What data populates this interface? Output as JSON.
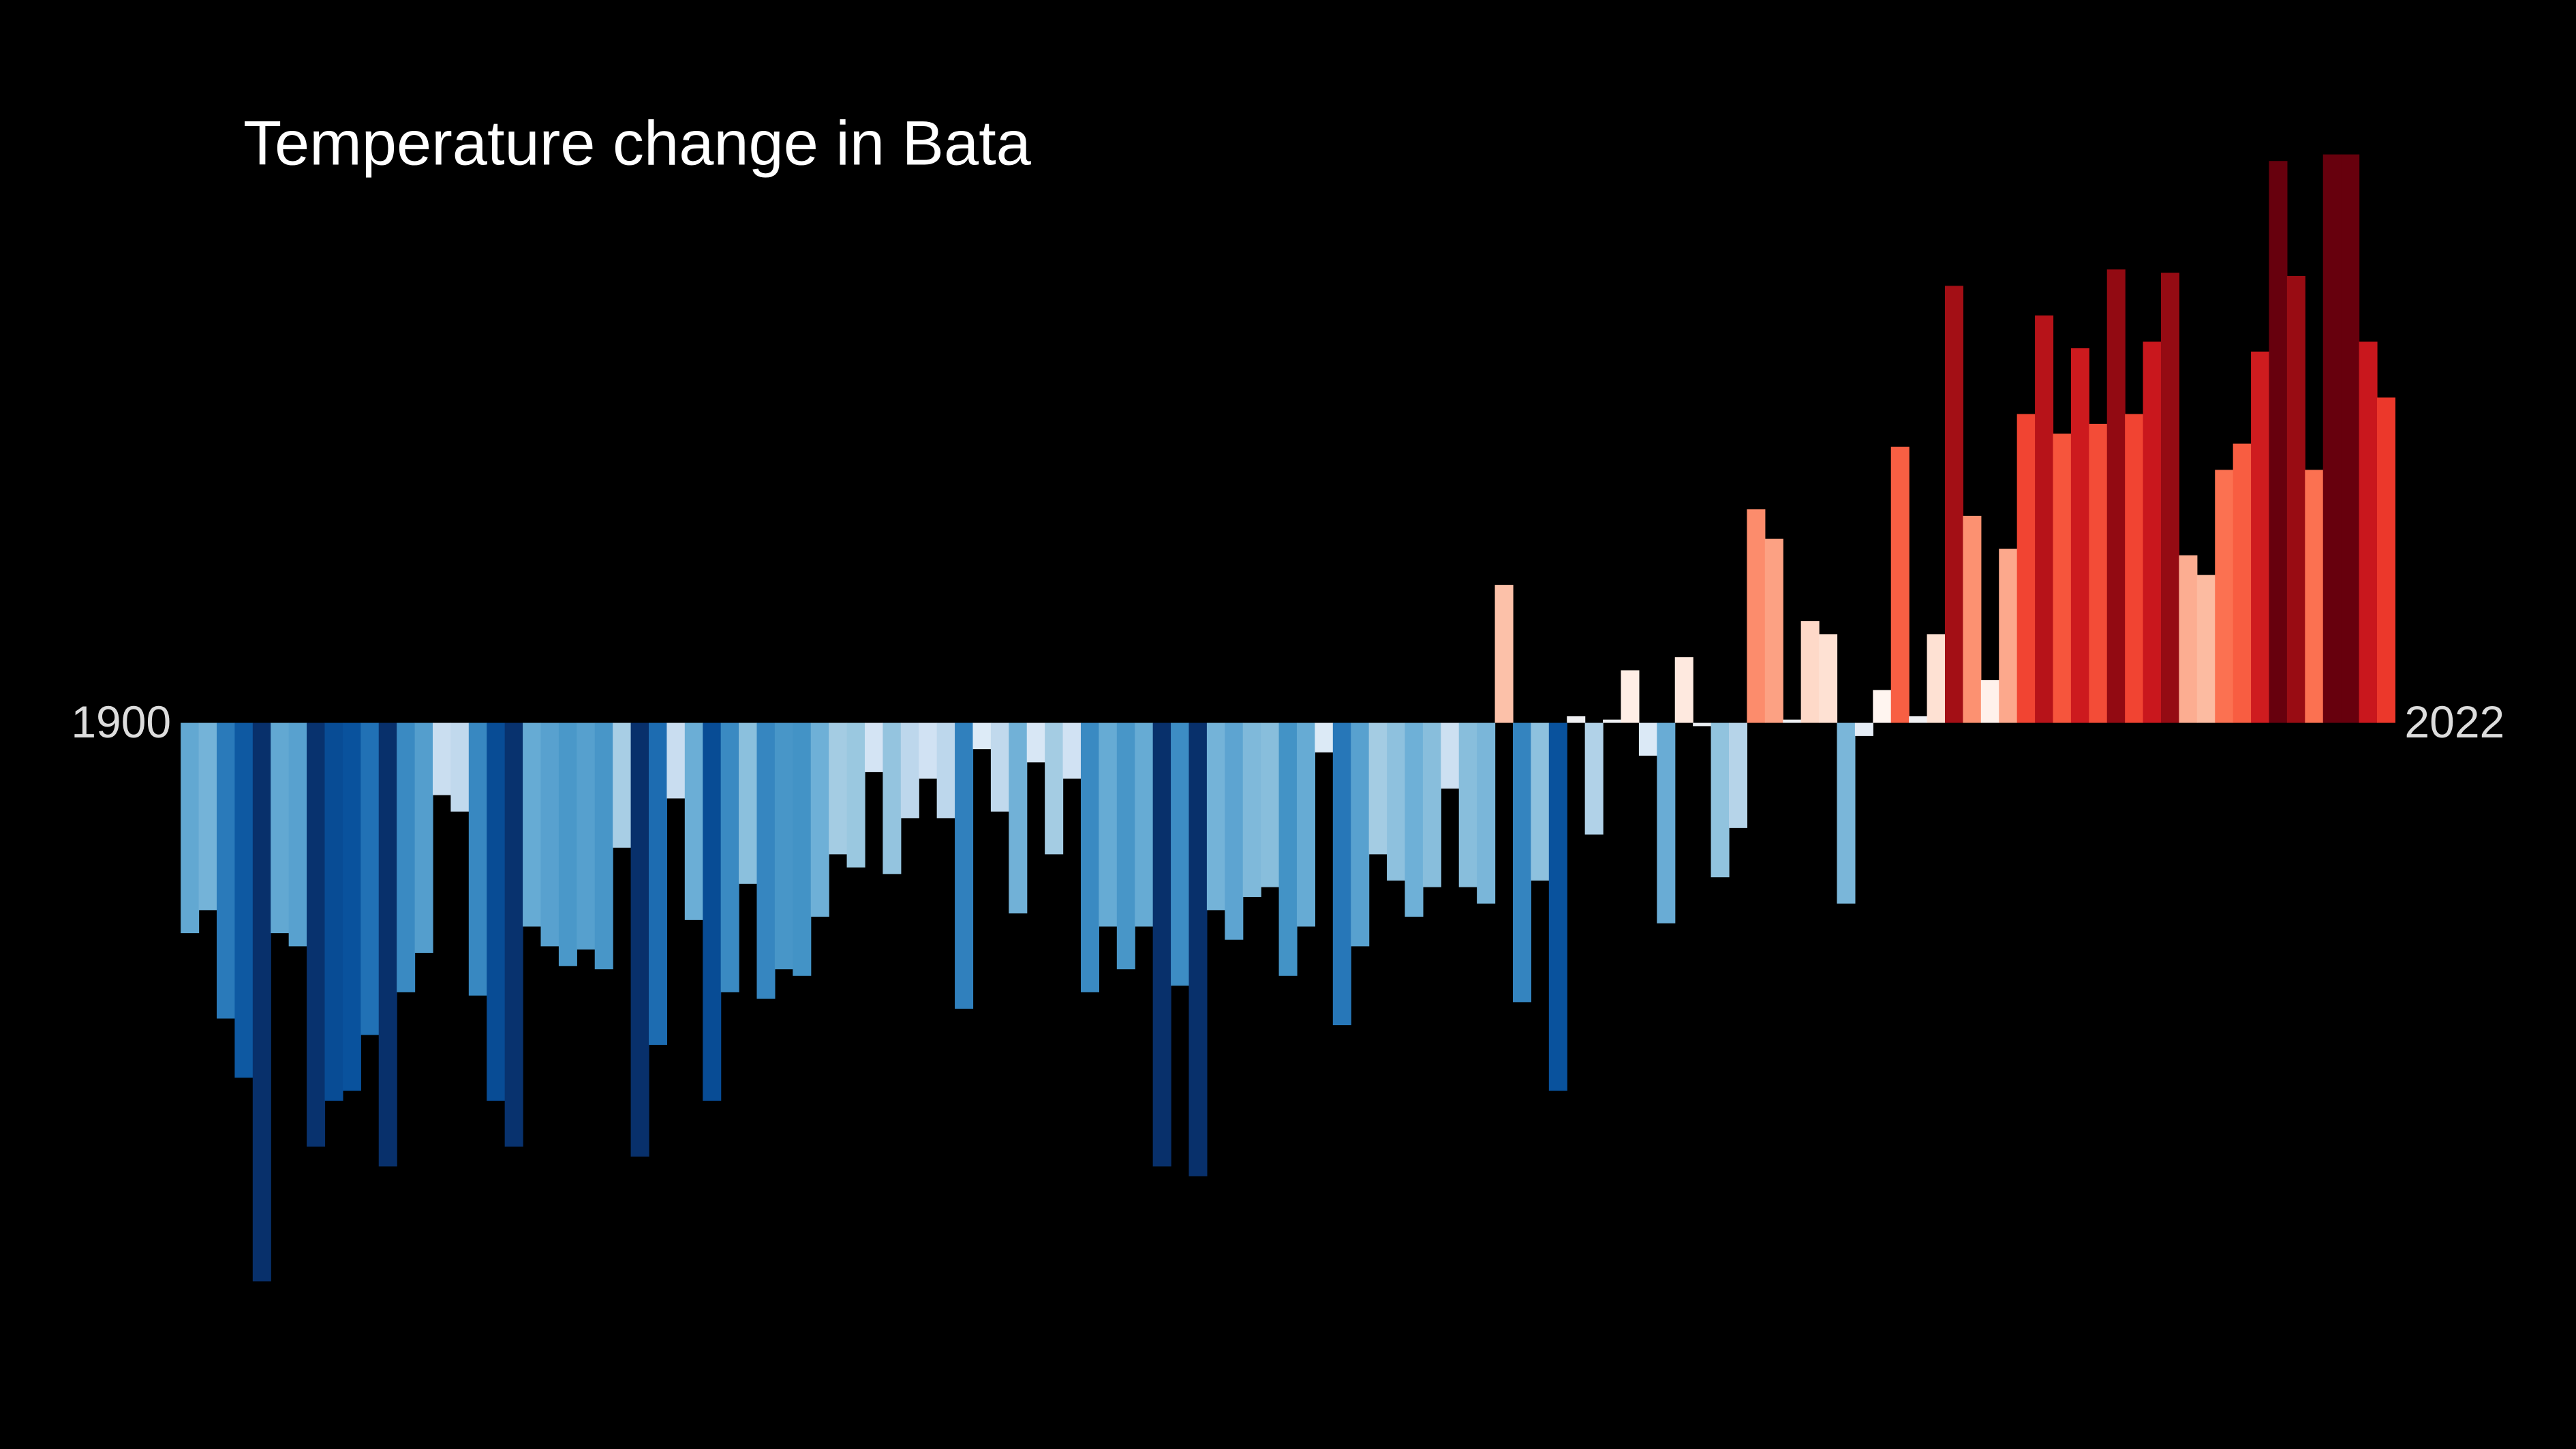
{
  "chart_data": {
    "type": "bar",
    "title": "Temperature change in Bata",
    "categories": [
      "1900",
      null,
      null,
      null,
      null,
      null,
      null,
      null,
      null,
      null,
      null,
      null,
      null,
      null,
      null,
      null,
      null,
      null,
      null,
      null,
      null,
      null,
      null,
      null,
      null,
      null,
      null,
      null,
      null,
      null,
      null,
      null,
      null,
      null,
      null,
      null,
      null,
      null,
      null,
      null,
      null,
      null,
      null,
      null,
      null,
      null,
      null,
      null,
      null,
      null,
      null,
      null,
      null,
      null,
      null,
      null,
      null,
      null,
      null,
      null,
      null,
      null,
      null,
      null,
      null,
      null,
      null,
      null,
      null,
      null,
      null,
      null,
      null,
      null,
      null,
      null,
      null,
      null,
      null,
      null,
      null,
      null,
      null,
      null,
      null,
      null,
      null,
      null,
      null,
      null,
      null,
      null,
      null,
      null,
      null,
      null,
      null,
      null,
      null,
      null,
      null,
      null,
      null,
      null,
      null,
      null,
      null,
      null,
      null,
      null,
      null,
      null,
      null,
      null,
      null,
      null,
      null,
      null,
      null,
      null,
      null,
      null,
      "2022"
    ],
    "values": [
      -0.64,
      -0.57,
      -0.9,
      -1.08,
      -1.7,
      -0.64,
      -0.68,
      -1.29,
      -1.15,
      -1.12,
      -0.95,
      -1.35,
      -0.82,
      -0.7,
      -0.22,
      -0.27,
      -0.83,
      -1.15,
      -1.29,
      -0.62,
      -0.68,
      -0.74,
      -0.69,
      -0.75,
      -0.38,
      -1.32,
      -0.98,
      -0.23,
      -0.6,
      -1.15,
      -0.82,
      -0.49,
      -0.84,
      -0.75,
      -0.77,
      -0.59,
      -0.4,
      -0.44,
      -0.15,
      -0.46,
      -0.29,
      -0.17,
      -0.29,
      -0.87,
      -0.08,
      -0.27,
      -0.58,
      -0.12,
      -0.4,
      -0.17,
      -0.82,
      -0.62,
      -0.75,
      -0.62,
      -1.35,
      -0.8,
      -1.38,
      -0.57,
      -0.66,
      -0.53,
      -0.5,
      -0.77,
      -0.62,
      -0.09,
      -0.92,
      -0.68,
      -0.4,
      -0.48,
      -0.59,
      -0.5,
      -0.2,
      -0.5,
      -0.55,
      0.42,
      -0.85,
      -0.48,
      -1.12,
      0.02,
      -0.34,
      0.01,
      0.16,
      -0.1,
      -0.61,
      0.2,
      -0.01,
      -0.47,
      -0.32,
      0.65,
      0.56,
      0.01,
      0.31,
      0.27,
      -0.55,
      -0.04,
      0.1,
      0.84,
      0.02,
      0.27,
      1.33,
      0.63,
      0.13,
      0.53,
      0.94,
      1.24,
      0.88,
      1.14,
      0.91,
      1.38,
      0.94,
      1.16,
      1.37,
      0.51,
      0.45,
      0.77,
      0.85,
      1.13,
      1.71,
      1.36,
      0.77,
      1.73,
      1.73,
      1.16,
      0.99
    ],
    "ylim": [
      -2,
      2
    ],
    "colormap": [
      "#08306b",
      "#08519c",
      "#2171b5",
      "#4292c6",
      "#6baed6",
      "#9ecae1",
      "#c6dbef",
      "#deebf7",
      "#fff5f0",
      "#fee0d2",
      "#fcbba1",
      "#fc9272",
      "#fb6a4a",
      "#ef3b2c",
      "#cb181d",
      "#a50f15",
      "#67000d"
    ],
    "clim": [
      -1.3,
      1.5
    ],
    "background": "#000000"
  }
}
